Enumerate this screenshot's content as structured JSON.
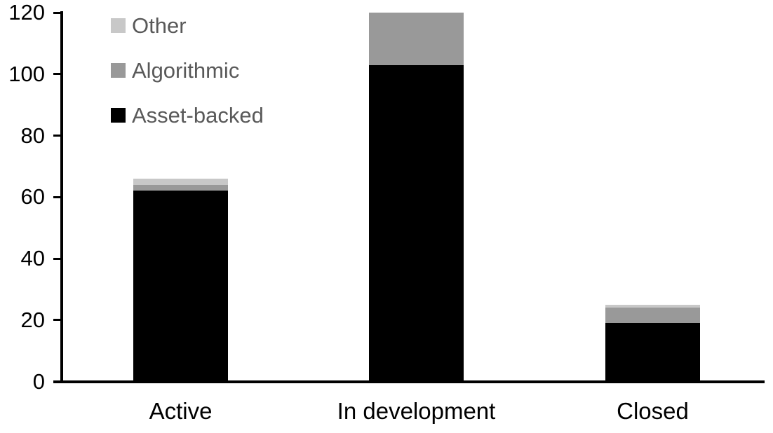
{
  "chart_data": {
    "type": "bar",
    "stacked": true,
    "title": "",
    "xlabel": "",
    "ylabel": "",
    "grid": false,
    "background": "#ffffff",
    "axis_color": "#000000",
    "categories": [
      "Active",
      "In development",
      "Closed"
    ],
    "series": [
      {
        "name": "Asset-backed",
        "color": "#000000",
        "values": [
          62,
          103,
          19
        ]
      },
      {
        "name": "Algorithmic",
        "color": "#999999",
        "values": [
          2,
          17,
          5
        ]
      },
      {
        "name": "Other",
        "color": "#c8c8c8",
        "values": [
          2,
          0,
          1
        ]
      }
    ],
    "stack_totals": [
      66,
      120,
      25
    ],
    "ylim": [
      0,
      120
    ],
    "yticks": [
      0,
      20,
      40,
      60,
      80,
      100,
      120
    ],
    "legend": {
      "position": "top-left",
      "order": [
        "Other",
        "Algorithmic",
        "Asset-backed"
      ],
      "text_color": "#595959"
    }
  }
}
